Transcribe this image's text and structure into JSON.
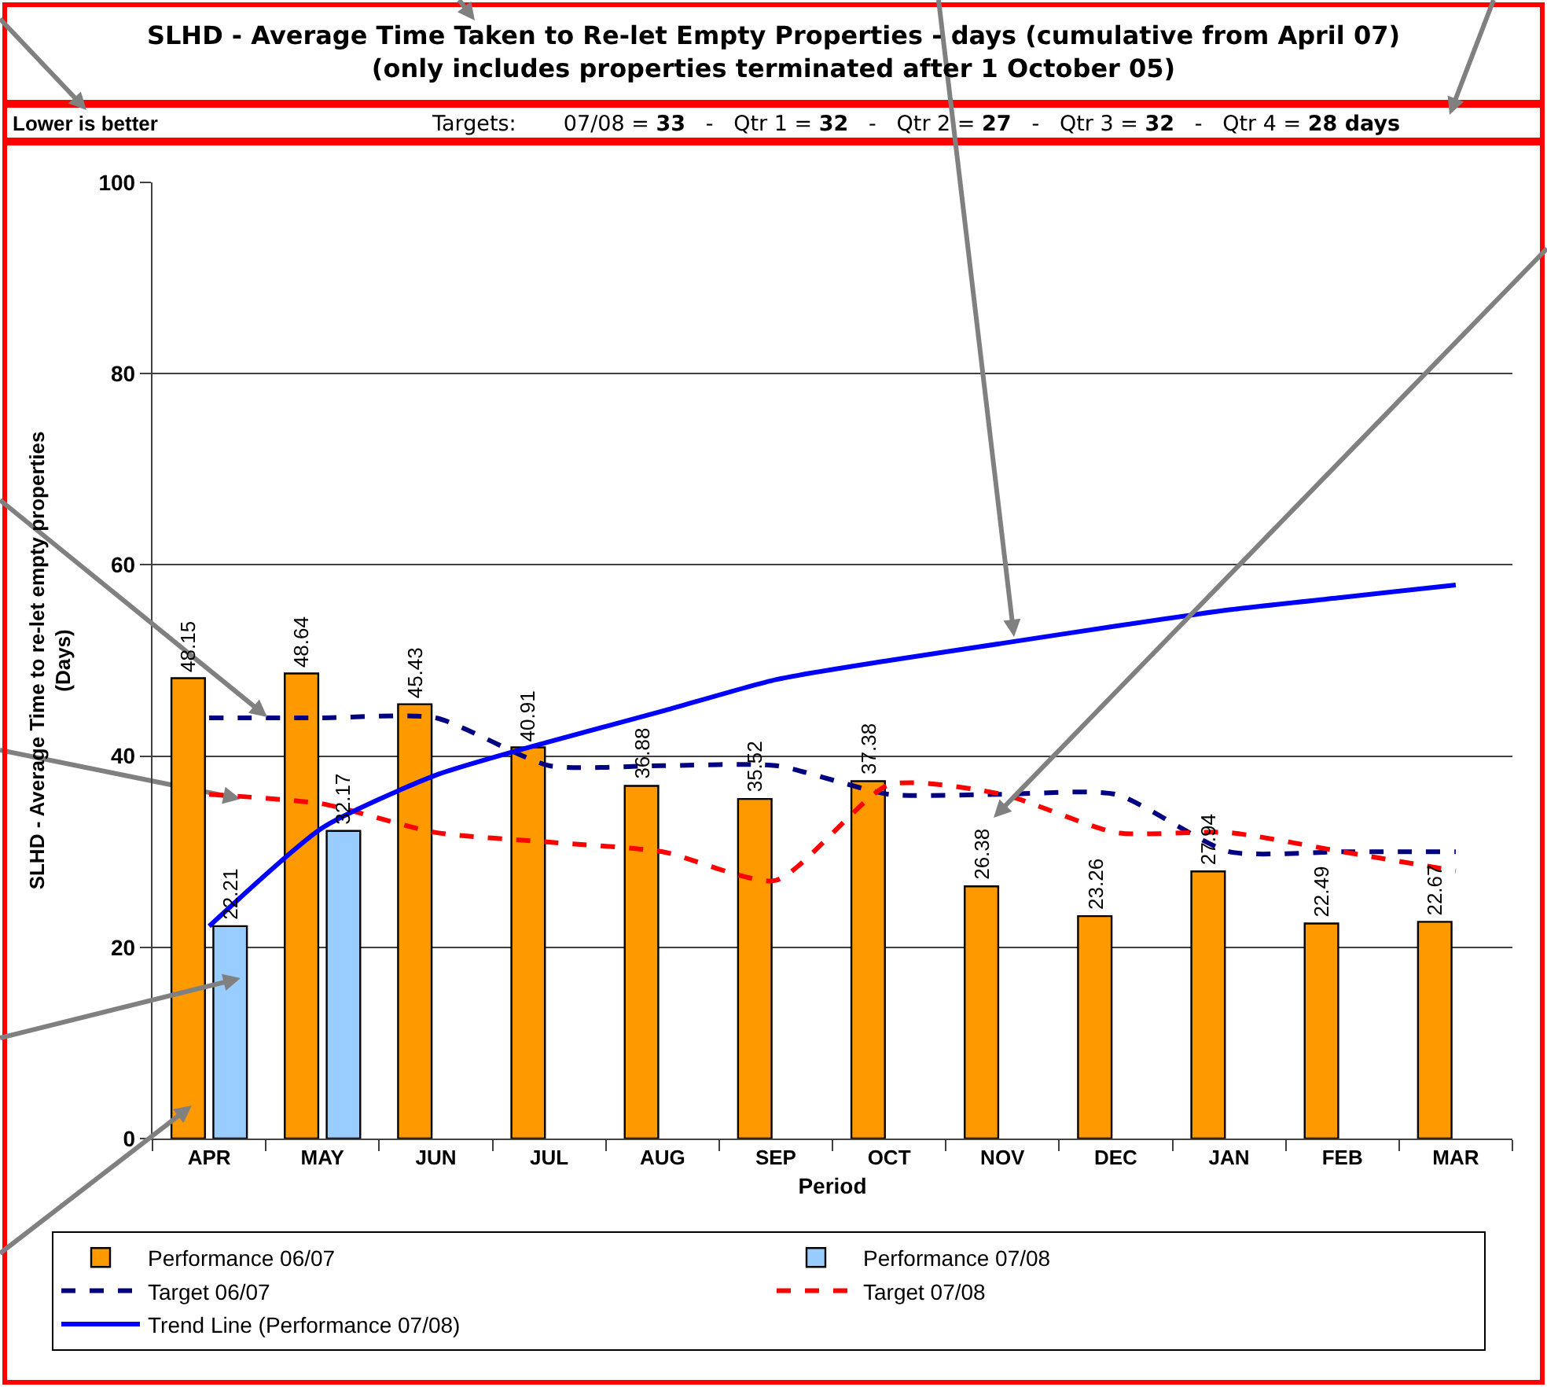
{
  "chart_data": {
    "type": "bar",
    "title": "SLHD - Average Time Taken to Re-let Empty Properties - days (cumulative from April 07)\n(only includes properties terminated after 1 October 05)",
    "annotations": [
      "Lower is better",
      "Targets: 07/08 = 33 - Qtr 1 = 32 - Qtr 2 = 27 - Qtr 3 = 32 - Qtr 4 = 28 days"
    ],
    "xlabel": "Period",
    "ylabel": "SLHD - Average Time to re-let empty properties\n(Days)",
    "categories": [
      "APR",
      "MAY",
      "JUN",
      "JUL",
      "AUG",
      "SEP",
      "OCT",
      "NOV",
      "DEC",
      "JAN",
      "FEB",
      "MAR"
    ],
    "series": [
      {
        "name": "Performance 06/07",
        "color": "#ff9900",
        "values": [
          48.15,
          48.64,
          45.43,
          40.91,
          36.88,
          35.52,
          37.38,
          26.38,
          23.26,
          27.94,
          22.49,
          22.67
        ],
        "value_labels": [
          "48.15",
          "48.64",
          "45.43",
          "40.91",
          "36.88",
          "35.52",
          "37.38",
          "26.38",
          "23.26",
          "27.94",
          "22.49",
          "22.67"
        ]
      },
      {
        "name": "Performance 07/08",
        "color": "#99ccff",
        "values": [
          22.21,
          32.17,
          null,
          null,
          null,
          null,
          null,
          null,
          null,
          null,
          null,
          null
        ],
        "value_labels": [
          "22.21",
          "32.17",
          null,
          null,
          null,
          null,
          null,
          null,
          null,
          null,
          null,
          null
        ]
      },
      {
        "name": "Target 06/07",
        "type": "line",
        "color": "#000080",
        "line_style": "dashed",
        "values": [
          44,
          44,
          44,
          39,
          39,
          39,
          36,
          36,
          36,
          30,
          30,
          30
        ]
      },
      {
        "name": "Target 07/08",
        "type": "line",
        "color": "#ff0000",
        "line_style": "dashed",
        "values": [
          36,
          35,
          32,
          31,
          30,
          27,
          37,
          36,
          32,
          32,
          30,
          28
        ]
      },
      {
        "name": "Trend Line (Performance 07/08)",
        "type": "line",
        "color": "#0000ff",
        "line_style": "solid",
        "values": [
          22.2,
          32.5,
          38,
          41.5,
          44.7,
          48,
          50,
          51.8,
          53.6,
          55.3,
          56.6,
          57.9
        ]
      }
    ],
    "ylim": [
      0,
      100
    ],
    "yticks": [
      0,
      20,
      40,
      60,
      80,
      100
    ],
    "grid": "y",
    "legend": "bottom"
  }
}
